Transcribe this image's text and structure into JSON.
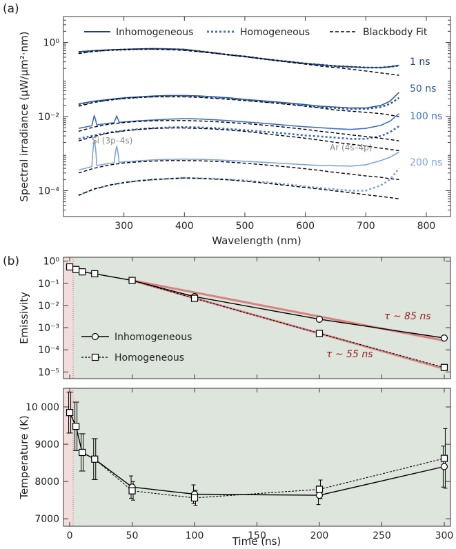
{
  "panel_labels": [
    "(a)",
    "(b)"
  ],
  "colors": {
    "c1": "#1f3f7a",
    "c50": "#2f5aa0",
    "c100": "#3f6fbe",
    "c200": "#7ea3dc",
    "fit": "#000000",
    "red_fit": "#d98080",
    "red_text": "#9b1c1c",
    "panel_bg": "#dde5dc",
    "pre_bg": "#f2dcdc"
  },
  "chart_data": [
    {
      "type": "line",
      "xlabel": "Wavelength (nm)",
      "ylabel": "Spectral irradiance (μW/μm²·nm)",
      "xlim": [
        200,
        840
      ],
      "ylim_log": [
        2e-05,
        5
      ],
      "yscale": "log",
      "x_ticks": [
        300,
        400,
        500,
        600,
        700,
        800
      ],
      "x_tick_labels": [
        "300",
        "400",
        "500",
        "600",
        "700",
        "800"
      ],
      "y_ticks": [
        1,
        0.01,
        0.0001
      ],
      "y_tick_labels": [
        "10⁰",
        "10⁻²",
        "10⁻⁴"
      ],
      "legend": {
        "placement": "top",
        "entries": [
          "Inhomogeneous",
          "Homogeneous",
          "Blackbody Fit"
        ]
      },
      "series_labels": [
        "1 ns",
        "50 ns",
        "100 ns",
        "200 ns"
      ],
      "annotations": [
        "Si (3p–4s)",
        "Ar (4s–4p)"
      ],
      "x": [
        225,
        250,
        275,
        300,
        325,
        350,
        375,
        400,
        425,
        450,
        475,
        500,
        525,
        550,
        575,
        600,
        625,
        650,
        675,
        700,
        725,
        740,
        755
      ],
      "series": [
        {
          "name": "1 ns",
          "style": "inhomogeneous",
          "color": "#1f3f7a",
          "values": [
            0.56,
            0.6,
            0.63,
            0.65,
            0.67,
            0.68,
            0.67,
            0.65,
            0.58,
            0.52,
            0.46,
            0.42,
            0.37,
            0.33,
            0.3,
            0.27,
            0.25,
            0.23,
            0.22,
            0.21,
            0.21,
            0.22,
            0.24
          ]
        },
        {
          "name": "1 ns",
          "style": "homogeneous",
          "color": "#1f3f7a",
          "values": [
            0.55,
            0.59,
            0.62,
            0.64,
            0.66,
            0.67,
            0.66,
            0.64,
            0.58,
            0.52,
            0.46,
            0.42,
            0.37,
            0.33,
            0.3,
            0.27,
            0.25,
            0.23,
            0.22,
            0.21,
            0.21,
            0.22,
            0.24
          ]
        },
        {
          "name": "1 ns",
          "style": "fit",
          "color": "#000000",
          "values": [
            0.5,
            0.57,
            0.62,
            0.65,
            0.66,
            0.66,
            0.64,
            0.61,
            0.56,
            0.51,
            0.46,
            0.41,
            0.37,
            0.33,
            0.29,
            0.26,
            0.23,
            0.21,
            0.19,
            0.17,
            0.15,
            0.14,
            0.13
          ]
        },
        {
          "name": "50 ns",
          "style": "inhomogeneous",
          "color": "#2f5aa0",
          "values": [
            0.022,
            0.026,
            0.029,
            0.032,
            0.034,
            0.036,
            0.037,
            0.037,
            0.036,
            0.034,
            0.032,
            0.029,
            0.027,
            0.025,
            0.023,
            0.021,
            0.019,
            0.018,
            0.017,
            0.017,
            0.02,
            0.026,
            0.045
          ]
        },
        {
          "name": "50 ns",
          "style": "homogeneous",
          "color": "#2f5aa0",
          "values": [
            0.021,
            0.025,
            0.028,
            0.031,
            0.033,
            0.035,
            0.036,
            0.036,
            0.035,
            0.033,
            0.031,
            0.028,
            0.026,
            0.024,
            0.022,
            0.02,
            0.018,
            0.017,
            0.016,
            0.016,
            0.018,
            0.022,
            0.032
          ]
        },
        {
          "name": "50 ns",
          "style": "fit",
          "color": "#000000",
          "values": [
            0.019,
            0.024,
            0.028,
            0.031,
            0.033,
            0.034,
            0.034,
            0.034,
            0.033,
            0.031,
            0.029,
            0.027,
            0.025,
            0.023,
            0.021,
            0.019,
            0.017,
            0.015,
            0.014,
            0.013,
            0.012,
            0.011,
            0.01
          ]
        },
        {
          "name": "100 ns",
          "style": "inhomogeneous",
          "color": "#3f6fbe",
          "values": [
            0.0048,
            0.0058,
            0.0066,
            0.0072,
            0.0077,
            0.0081,
            0.0085,
            0.0088,
            0.0086,
            0.0082,
            0.0077,
            0.0072,
            0.0067,
            0.0062,
            0.0057,
            0.0053,
            0.005,
            0.0047,
            0.0045,
            0.0048,
            0.0058,
            0.0075,
            0.012
          ]
        },
        {
          "name": "100 ns",
          "style": "homogeneous",
          "color": "#3f6fbe",
          "values": [
            0.0025,
            0.0031,
            0.0037,
            0.0042,
            0.0046,
            0.0049,
            0.0051,
            0.0052,
            0.0051,
            0.0049,
            0.0046,
            0.0043,
            0.004,
            0.0037,
            0.0034,
            0.0031,
            0.0029,
            0.0027,
            0.0025,
            0.0025,
            0.003,
            0.0038,
            0.0055
          ]
        },
        {
          "name": "100 ns",
          "style": "fit_upper",
          "color": "#000000",
          "values": [
            0.004,
            0.0052,
            0.0062,
            0.0069,
            0.0074,
            0.0077,
            0.0078,
            0.0078,
            0.0076,
            0.0073,
            0.0069,
            0.0065,
            0.006,
            0.0055,
            0.005,
            0.0045,
            0.004,
            0.0036,
            0.0032,
            0.0029,
            0.0026,
            0.0024,
            0.0022
          ]
        },
        {
          "name": "100 ns",
          "style": "fit_lower",
          "color": "#000000",
          "values": [
            0.0022,
            0.0029,
            0.0036,
            0.0041,
            0.0045,
            0.0048,
            0.0049,
            0.0049,
            0.0048,
            0.0046,
            0.0043,
            0.004,
            0.0036,
            0.0032,
            0.0029,
            0.0026,
            0.0023,
            0.002,
            0.0018,
            0.0016,
            0.0014,
            0.0013,
            0.0012
          ]
        },
        {
          "name": "200 ns",
          "style": "inhomogeneous",
          "color": "#7ea3dc",
          "values": [
            0.00036,
            0.00046,
            0.00054,
            0.0006,
            0.00064,
            0.00068,
            0.0007,
            0.00071,
            0.0007,
            0.00068,
            0.00065,
            0.00062,
            0.00059,
            0.00056,
            0.00053,
            0.0005,
            0.00048,
            0.00047,
            0.00046,
            0.0005,
            0.00065,
            0.0008,
            0.0011
          ]
        },
        {
          "name": "200 ns",
          "style": "homogeneous",
          "color": "#7ea3dc",
          "values": [
            7.5e-05,
            0.00011,
            0.00014,
            0.000165,
            0.000185,
            0.0002,
            0.00021,
            0.00022,
            0.000215,
            0.00021,
            0.0002,
            0.000188,
            0.000175,
            0.00016,
            0.000145,
            0.00013,
            0.000118,
            0.000108,
            0.0001,
            0.0001,
            0.00014,
            0.0002,
            0.0004
          ]
        },
        {
          "name": "200 ns",
          "style": "fit_upper",
          "color": "#000000",
          "values": [
            0.0003,
            0.0004,
            0.00049,
            0.00056,
            0.0006,
            0.00063,
            0.00065,
            0.00065,
            0.00064,
            0.00062,
            0.00059,
            0.00055,
            0.00051,
            0.00047,
            0.00043,
            0.00039,
            0.00035,
            0.00031,
            0.00028,
            0.00025,
            0.00023,
            0.00021,
            0.0002
          ]
        },
        {
          "name": "200 ns",
          "style": "fit_lower",
          "color": "#000000",
          "values": [
            7.5e-05,
            0.00011,
            0.00014,
            0.000165,
            0.000185,
            0.0002,
            0.00021,
            0.00022,
            0.000215,
            0.000205,
            0.000195,
            0.00018,
            0.000165,
            0.00015,
            0.000135,
            0.000122,
            0.00011,
            9.8e-05,
            8.8e-05,
            7.8e-05,
            7e-05,
            6.5e-05,
            6e-05
          ]
        }
      ],
      "peaks": [
        {
          "x": 251,
          "factor_inhom": 5.0,
          "factor_100": 1.8,
          "series": "200 ns"
        },
        {
          "x": 288,
          "factor_inhom": 2.8,
          "factor_100": 1.5,
          "series": "200 ns"
        }
      ]
    },
    {
      "type": "line",
      "yscale": "log",
      "ylabel": "Emissivity",
      "xlim": [
        -5,
        305
      ],
      "ylim_log": [
        5e-06,
        1.5
      ],
      "y_ticks": [
        1,
        0.1,
        0.01,
        0.001,
        0.0001,
        1e-05
      ],
      "y_tick_labels": [
        "10⁰",
        "10⁻¹",
        "10⁻²",
        "10⁻³",
        "10⁻⁴",
        "10⁻⁵"
      ],
      "legend": {
        "placement": "bottom-left",
        "entries": [
          "Inhomogeneous",
          "Homogeneous"
        ]
      },
      "annotations": [
        "τ ~ 85 ns",
        "τ ~ 55 ns"
      ],
      "x": [
        0,
        5,
        10,
        20,
        50,
        100,
        200,
        300
      ],
      "series": [
        {
          "name": "Inhomogeneous",
          "marker": "circle",
          "values": [
            0.55,
            0.42,
            0.33,
            0.27,
            0.135,
            0.025,
            0.0024,
            0.00034
          ]
        },
        {
          "name": "Homogeneous",
          "marker": "square",
          "values": [
            0.55,
            0.42,
            0.33,
            0.27,
            0.135,
            0.021,
            0.00055,
            1.6e-05
          ]
        }
      ],
      "fits": [
        {
          "label": "τ ~ 85 ns",
          "x0": 50,
          "y0": 0.135,
          "x1": 300,
          "y1": 0.00026
        },
        {
          "label": "τ ~ 55 ns",
          "x0": 50,
          "y0": 0.135,
          "x1": 300,
          "y1": 1.4e-05
        }
      ]
    },
    {
      "type": "line",
      "ylabel": "Temperature (K)",
      "xlabel": "Time (ns)",
      "xlim": [
        -5,
        305
      ],
      "ylim": [
        6800,
        10500
      ],
      "y_ticks": [
        7000,
        8000,
        9000,
        10000
      ],
      "y_tick_labels": [
        "7000",
        "8000",
        "9000",
        "10 000"
      ],
      "x_ticks": [
        0,
        50,
        100,
        150,
        200,
        250,
        300
      ],
      "x_tick_labels": [
        "0",
        "50",
        "100",
        "150",
        "200",
        "250",
        "300"
      ],
      "x": [
        0,
        5,
        10,
        20,
        50,
        100,
        200,
        300
      ],
      "series": [
        {
          "name": "Inhomogeneous",
          "marker": "circle",
          "values": [
            9850,
            9480,
            8780,
            8600,
            7850,
            7660,
            7630,
            8400
          ],
          "err": [
            550,
            650,
            500,
            550,
            300,
            250,
            250,
            550
          ]
        },
        {
          "name": "Homogeneous",
          "marker": "square",
          "values": [
            9850,
            9480,
            8780,
            8600,
            7750,
            7560,
            7790,
            8620
          ],
          "err": [
            550,
            650,
            500,
            550,
            250,
            200,
            250,
            800
          ]
        }
      ]
    }
  ]
}
